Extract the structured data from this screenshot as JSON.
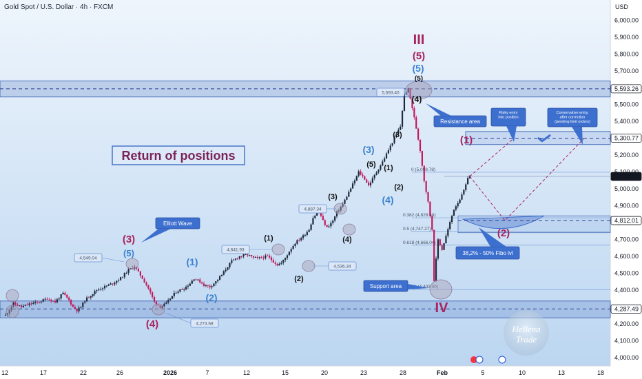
{
  "header": {
    "title": "Gold Spot / U.S. Dollar · 4h · FXCM",
    "currency": "USD"
  },
  "colors": {
    "up": "#1e293b",
    "down": "#c2185b",
    "wave_black": "#111111",
    "wave_blue": "#3b82d0",
    "wave_red": "#a8235f",
    "callout": "#3d6fcf",
    "zone": "#5b7fc7",
    "bg_top": "#eef5fc",
    "bg_bottom": "#bcd6f1"
  },
  "chart_data": {
    "type": "candlestick",
    "title": "Gold Spot / U.S. Dollar · 4h · FXCM",
    "ylim": [
      3950,
      6120
    ],
    "y_ticks": [
      "6,000.00",
      "5,900.00",
      "5,800.00",
      "5,700.00",
      "5,600.00",
      "5,500.00",
      "5,400.00",
      "5,300.00",
      "5,200.00",
      "5,100.00",
      "5,000.00",
      "4,900.00",
      "4,800.00",
      "4,700.00",
      "4,600.00",
      "4,500.00",
      "4,400.00",
      "4,300.00",
      "4,200.00",
      "4,100.00",
      "4,000.00"
    ],
    "x_ticks": [
      "12",
      "17",
      "22",
      "26",
      "2026",
      "7",
      "12",
      "15",
      "20",
      "23",
      "28",
      "Feb",
      "5",
      "10",
      "13",
      "18"
    ],
    "price_labels": [
      {
        "text": "5,593.26",
        "value": 5593.26,
        "color": "#ffffff",
        "text_color": "#131722"
      },
      {
        "text": "5,300.77",
        "value": 5300.77,
        "color": "#ffffff",
        "text_color": "#131722"
      },
      {
        "text": "5,073.92",
        "value": 5073.92,
        "color": "#131722",
        "text_color": "#ffffff"
      },
      {
        "text": "4,812.01",
        "value": 4812.01,
        "color": "#ffffff",
        "text_color": "#131722"
      },
      {
        "text": "4,287.49",
        "value": 4287.49,
        "color": "#ffffff",
        "text_color": "#131722"
      }
    ],
    "path_close": [
      [
        0,
        4250
      ],
      [
        8,
        4320
      ],
      [
        16,
        4300
      ],
      [
        26,
        4320
      ],
      [
        34,
        4330
      ],
      [
        42,
        4350
      ],
      [
        50,
        4330
      ],
      [
        58,
        4380
      ],
      [
        64,
        4340
      ],
      [
        68,
        4300
      ],
      [
        72,
        4280
      ],
      [
        76,
        4300
      ],
      [
        80,
        4340
      ],
      [
        86,
        4370
      ],
      [
        92,
        4400
      ],
      [
        100,
        4420
      ],
      [
        108,
        4440
      ],
      [
        116,
        4470
      ],
      [
        124,
        4520
      ],
      [
        130,
        4540
      ],
      [
        134,
        4505
      ],
      [
        138,
        4470
      ],
      [
        144,
        4410
      ],
      [
        150,
        4330
      ],
      [
        156,
        4300
      ],
      [
        162,
        4320
      ],
      [
        166,
        4350
      ],
      [
        172,
        4390
      ],
      [
        180,
        4410
      ],
      [
        186,
        4440
      ],
      [
        190,
        4470
      ],
      [
        196,
        4450
      ],
      [
        200,
        4430
      ],
      [
        206,
        4420
      ],
      [
        212,
        4450
      ],
      [
        218,
        4490
      ],
      [
        224,
        4540
      ],
      [
        228,
        4570
      ],
      [
        236,
        4600
      ],
      [
        244,
        4610
      ],
      [
        250,
        4590
      ],
      [
        256,
        4590
      ],
      [
        264,
        4600
      ],
      [
        270,
        4570
      ],
      [
        274,
        4550
      ],
      [
        278,
        4560
      ],
      [
        282,
        4590
      ],
      [
        286,
        4630
      ],
      [
        292,
        4680
      ],
      [
        300,
        4720
      ],
      [
        306,
        4760
      ],
      [
        310,
        4830
      ],
      [
        316,
        4870
      ],
      [
        320,
        4810
      ],
      [
        324,
        4770
      ],
      [
        330,
        4810
      ],
      [
        334,
        4860
      ],
      [
        340,
        4910
      ],
      [
        346,
        4980
      ],
      [
        352,
        5050
      ],
      [
        356,
        5100
      ],
      [
        362,
        5060
      ],
      [
        366,
        5020
      ],
      [
        372,
        5080
      ],
      [
        380,
        5160
      ],
      [
        386,
        5230
      ],
      [
        392,
        5300
      ],
      [
        398,
        5370
      ],
      [
        402,
        5560
      ],
      [
        406,
        5590
      ],
      [
        410,
        5480
      ],
      [
        414,
        5360
      ],
      [
        418,
        5230
      ],
      [
        422,
        5050
      ],
      [
        426,
        4920
      ],
      [
        430,
        4760
      ],
      [
        432,
        4460
      ],
      [
        436,
        4700
      ],
      [
        440,
        4640
      ],
      [
        444,
        4720
      ],
      [
        448,
        4800
      ],
      [
        452,
        4880
      ],
      [
        456,
        4920
      ],
      [
        460,
        4960
      ],
      [
        464,
        5020
      ],
      [
        466,
        5070
      ],
      [
        468,
        5074
      ]
    ],
    "wave_labels": [
      {
        "text": "III",
        "color": "#a8235f"
      },
      {
        "text": "(5)",
        "color": "#a8235f"
      },
      {
        "text": "(5)",
        "color": "#3b82d0"
      },
      {
        "text": "(5)",
        "color": "#111111"
      },
      {
        "text": "(4)",
        "color": "#111111"
      },
      {
        "text": "(3)",
        "color": "#111111"
      },
      {
        "text": "(3)",
        "color": "#3b82d0"
      },
      {
        "text": "(5)",
        "color": "#111111"
      },
      {
        "text": "(1)",
        "color": "#111111"
      },
      {
        "text": "(2)",
        "color": "#111111"
      },
      {
        "text": "(4)",
        "color": "#3b82d0"
      },
      {
        "text": "(3)",
        "color": "#111111"
      },
      {
        "text": "(4)",
        "color": "#111111"
      },
      {
        "text": "(1)",
        "color": "#111111"
      },
      {
        "text": "(2)",
        "color": "#111111"
      },
      {
        "text": "(1)",
        "color": "#3b82d0"
      },
      {
        "text": "(2)",
        "color": "#3b82d0"
      },
      {
        "text": "(3)",
        "color": "#a8235f"
      },
      {
        "text": "(5)",
        "color": "#3b82d0"
      },
      {
        "text": "(4)",
        "color": "#a8235f"
      },
      {
        "text": "(1)",
        "color": "#a8235f"
      },
      {
        "text": "(2)",
        "color": "#a8235f"
      },
      {
        "text": "IV",
        "color": "#a8235f"
      }
    ],
    "price_tags": [
      "5,593.40",
      "4,887.34",
      "4,641.93",
      "4,536.34",
      "4,549.04",
      "4,273.68"
    ],
    "fib_levels": [
      {
        "text": "0 (5,098.78)",
        "value": 5098.78
      },
      {
        "text": "0.382 (4,828.43)",
        "value": 4828.43
      },
      {
        "text": "0.5 (4,747.27)",
        "value": 4747.27
      },
      {
        "text": "0.618 (4,666.04)",
        "value": 4666.04
      },
      {
        "text": "1 (4,403.00)",
        "value": 4403.0
      }
    ],
    "callouts": {
      "elliott": "Elliott Wave",
      "resistance": "Resistance area",
      "support": "Support area",
      "fibo": "38,2% - 50% Fibo lvl",
      "risky": "Risky entry\ninto position",
      "conservative": "Conservative entry,\nafter correction\n(pending limit orders)"
    },
    "headline": "Return of positions",
    "watermark": "Hellena\nTrade"
  }
}
